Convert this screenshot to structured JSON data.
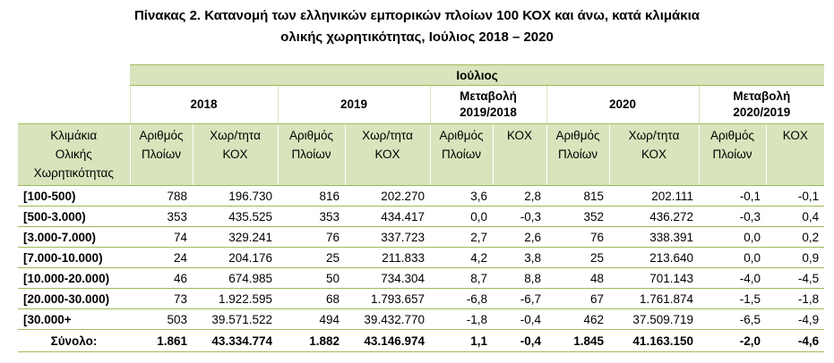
{
  "title": [
    "Πίνακας 2. Κατανομή των ελληνικών εμπορικών πλοίων 100 ΚΟΧ και άνω, κατά κλιμάκια",
    "ολικής χωρητικότητας, Ιούλιος 2018 – 2020"
  ],
  "table": {
    "group": "Ιούλιος",
    "years": [
      [
        "2018"
      ],
      [
        "2019"
      ],
      [
        "Μεταβολή",
        "2019/2018"
      ],
      [
        "2020"
      ],
      [
        "Μεταβολή",
        "2020/2019"
      ]
    ],
    "row_header": [
      "Κλιμάκια",
      "Ολικής",
      "Χωρητικότητας"
    ],
    "subheaders": [
      [
        "Αριθμός",
        "Πλοίων"
      ],
      [
        "Χωρ/τητα",
        "ΚΟΧ"
      ],
      [
        "Αριθμός",
        "Πλοίων"
      ],
      [
        "Χωρ/τητα",
        "ΚΟΧ"
      ],
      [
        "Αριθμός",
        "Πλοίων"
      ],
      [
        "ΚΟΧ"
      ],
      [
        "Αριθμός",
        "Πλοίων"
      ],
      [
        "Χωρ/τητα",
        "ΚΟΧ"
      ],
      [
        "Αριθμός",
        "Πλοίων"
      ],
      [
        "ΚΟΧ"
      ]
    ],
    "rows": [
      [
        "[100-500)",
        "788",
        "196.730",
        "816",
        "202.270",
        "3,6",
        "2,8",
        "815",
        "202.111",
        "-0,1",
        "-0,1"
      ],
      [
        "[500-3.000)",
        "353",
        "435.525",
        "353",
        "434.417",
        "0,0",
        "-0,3",
        "352",
        "436.272",
        "-0,3",
        "0,4"
      ],
      [
        "[3.000-7.000)",
        "74",
        "329.241",
        "76",
        "337.723",
        "2,7",
        "2,6",
        "76",
        "338.391",
        "0,0",
        "0,2"
      ],
      [
        "[7.000-10.000)",
        "24",
        "204.176",
        "25",
        "211.833",
        "4,2",
        "3,8",
        "25",
        "213.640",
        "0,0",
        "0,9"
      ],
      [
        "[10.000-20.000)",
        "46",
        "674.985",
        "50",
        "734.304",
        "8,7",
        "8,8",
        "48",
        "701.143",
        "-4,0",
        "-4,5"
      ],
      [
        "[20.000-30.000)",
        "73",
        "1.922.595",
        "68",
        "1.793.657",
        "-6,8",
        "-6,7",
        "67",
        "1.761.874",
        "-1,5",
        "-1,8"
      ],
      [
        "[30.000+",
        "503",
        "39.571.522",
        "494",
        "39.432.770",
        "-1,8",
        "-0,4",
        "462",
        "37.509.719",
        "-6,5",
        "-4,9"
      ]
    ],
    "total": [
      "Σύνολο:",
      "1.861",
      "43.334.774",
      "1.882",
      "43.146.974",
      "1,1",
      "-0,4",
      "1.845",
      "41.163.150",
      "-2,0",
      "-4,6"
    ]
  }
}
